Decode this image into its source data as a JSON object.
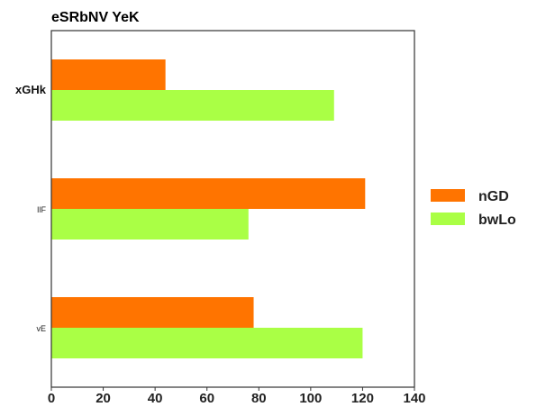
{
  "chart_data": {
    "type": "bar",
    "orientation": "horizontal",
    "title": "eSRbNV YeK",
    "xlabel": "",
    "ylabel": "",
    "categories": [
      "xGHk",
      "IlF",
      "vE"
    ],
    "series": [
      {
        "name": "nGD",
        "color": "#ff7400",
        "values": [
          44,
          121,
          78
        ]
      },
      {
        "name": "bwLo",
        "color": "#aaff45",
        "values": [
          109,
          76,
          120
        ]
      }
    ],
    "xlim": [
      0,
      140
    ],
    "xticks": [
      "0",
      "20",
      "40",
      "60",
      "80",
      "100",
      "120",
      "140"
    ],
    "grid": false,
    "legend_position": "right"
  }
}
